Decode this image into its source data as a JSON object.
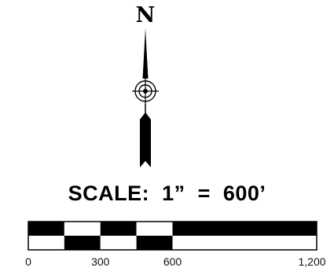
{
  "north_arrow": {
    "letter": "N"
  },
  "scale": {
    "title": "SCALE:  1”  =  600’",
    "bar_ticks": [
      {
        "value": 0,
        "label": "0"
      },
      {
        "value": 300,
        "label": "300"
      },
      {
        "value": 600,
        "label": "600"
      },
      {
        "value": 1200,
        "label": "1,200"
      }
    ],
    "max_value": 1200,
    "major_division": 600,
    "minor_divisions_in_first_segment": 4,
    "colors": {
      "ink": "#000000",
      "paper": "#ffffff"
    }
  }
}
